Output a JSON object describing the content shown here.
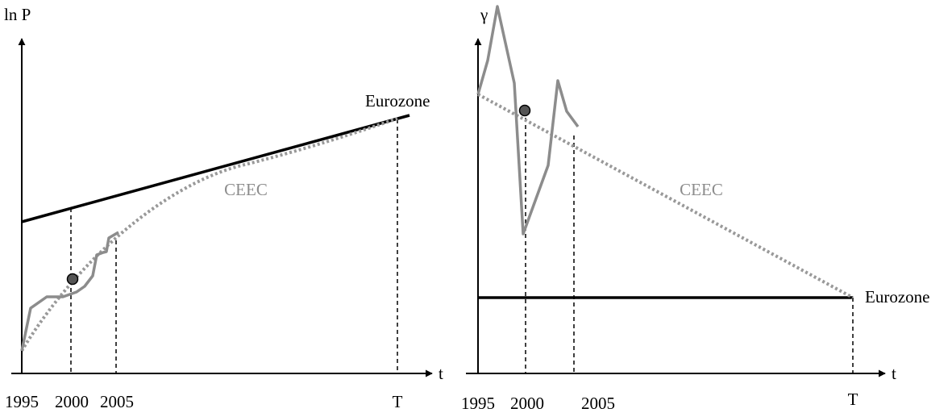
{
  "left_panel": {
    "y_axis_label": "ln P",
    "x_axis_label": "t",
    "x_labels": [
      "1995",
      "2000",
      "2005",
      "T"
    ],
    "eurozone_label": "Eurozone",
    "ceec_label": "CEEC"
  },
  "right_panel": {
    "y_axis_label": "γ",
    "x_axis_label": "t",
    "x_labels": [
      "1995",
      "2000",
      "2005",
      "T"
    ],
    "eurozone_label": "Eurozone",
    "ceec_label": "CEEC"
  }
}
